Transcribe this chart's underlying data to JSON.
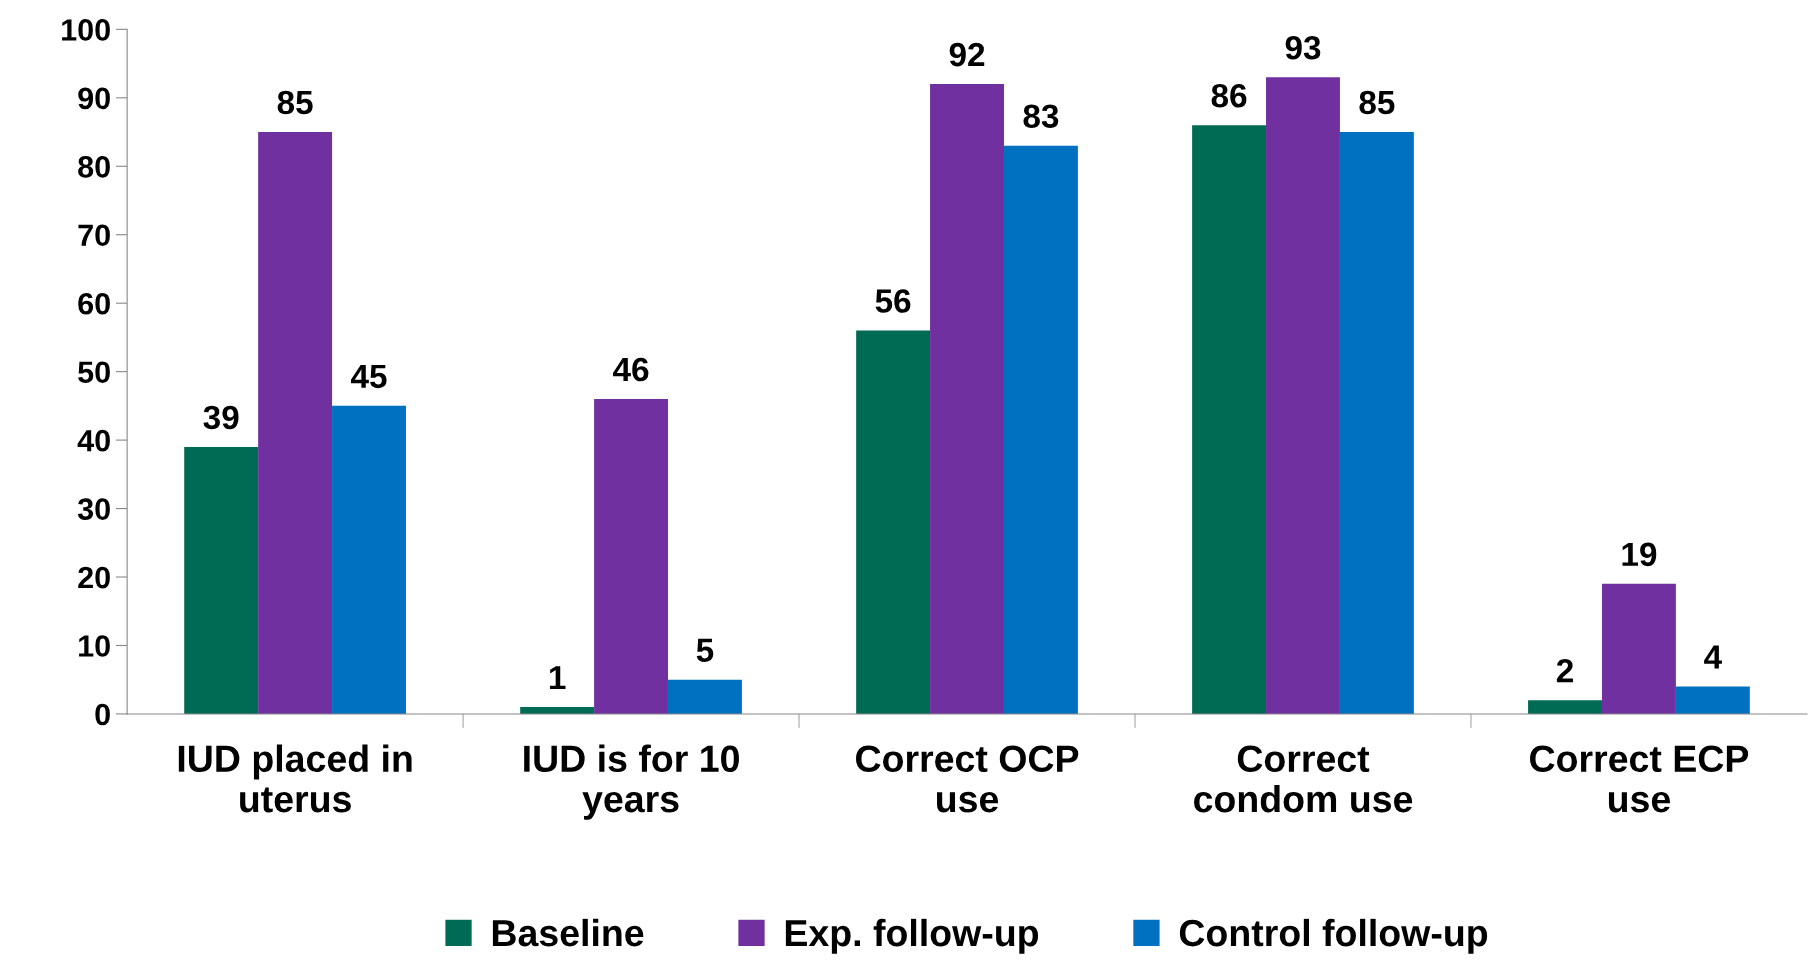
{
  "chart_data": {
    "type": "bar",
    "categories": [
      "IUD placed in\nuterus",
      "IUD is for 10\nyears",
      "Correct OCP\nuse",
      "Correct\ncondom use",
      "Correct ECP\nuse"
    ],
    "series": [
      {
        "name": "Baseline",
        "color": "#006b54",
        "values": [
          39,
          1,
          56,
          86,
          2
        ]
      },
      {
        "name": "Exp. follow-up",
        "color": "#7030a0",
        "values": [
          85,
          46,
          92,
          93,
          19
        ]
      },
      {
        "name": "Control follow-up",
        "color": "#0070c0",
        "values": [
          45,
          5,
          83,
          85,
          4
        ]
      }
    ],
    "ylim": [
      0,
      100
    ],
    "yticks": [
      0,
      10,
      20,
      30,
      40,
      50,
      60,
      70,
      80,
      90,
      100
    ],
    "data_labels": true,
    "legend": "bottom",
    "grid": false
  }
}
